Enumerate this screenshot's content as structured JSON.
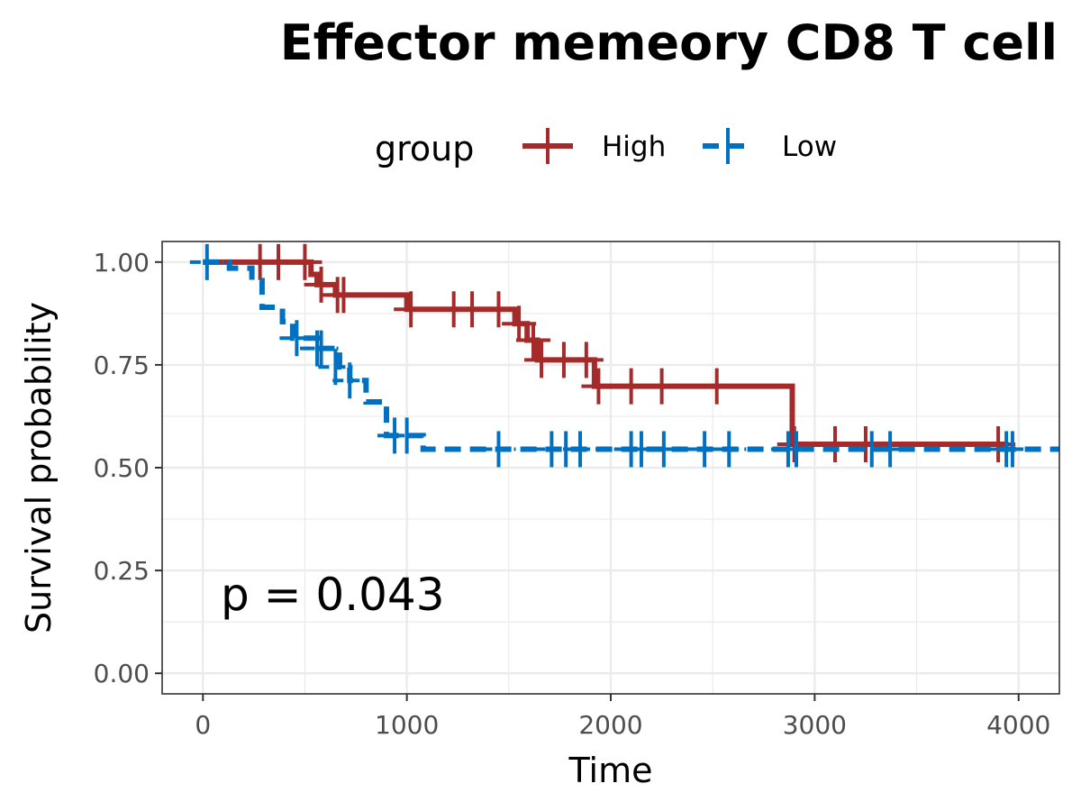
{
  "chart_data": {
    "type": "line",
    "title": "Effector memeory CD8 T cell",
    "xlabel": "Time",
    "ylabel": "Survival probability",
    "xlim": [
      -200,
      4200
    ],
    "ylim": [
      -0.05,
      1.05
    ],
    "xticks": [
      0,
      1000,
      2000,
      3000,
      4000
    ],
    "xtick_labels": [
      "0",
      "1000",
      "2000",
      "3000",
      "4000"
    ],
    "yticks": [
      0,
      0.25,
      0.5,
      0.75,
      1
    ],
    "ytick_labels": [
      "0.00",
      "0.25",
      "0.50",
      "0.75",
      "1.00"
    ],
    "grid": true,
    "legend": {
      "title": "group",
      "position": "top"
    },
    "annotation": "p = 0.043",
    "series": [
      {
        "name": "High",
        "color": "#A52A2A",
        "dash": "solid",
        "steps": [
          [
            0,
            1.0
          ],
          [
            530,
            0.97
          ],
          [
            560,
            0.945
          ],
          [
            650,
            0.92
          ],
          [
            1000,
            0.885
          ],
          [
            1530,
            0.85
          ],
          [
            1590,
            0.81
          ],
          [
            1640,
            0.762
          ],
          [
            1920,
            0.698
          ],
          [
            2890,
            0.557
          ],
          [
            3950,
            0.557
          ]
        ],
        "censor": [
          [
            280,
            1.0
          ],
          [
            370,
            1.0
          ],
          [
            500,
            1.0
          ],
          [
            580,
            0.945
          ],
          [
            660,
            0.92
          ],
          [
            690,
            0.92
          ],
          [
            1020,
            0.885
          ],
          [
            1230,
            0.885
          ],
          [
            1320,
            0.885
          ],
          [
            1450,
            0.885
          ],
          [
            1550,
            0.85
          ],
          [
            1620,
            0.81
          ],
          [
            1660,
            0.762
          ],
          [
            1770,
            0.762
          ],
          [
            1880,
            0.762
          ],
          [
            1940,
            0.698
          ],
          [
            2100,
            0.698
          ],
          [
            2250,
            0.698
          ],
          [
            2520,
            0.698
          ],
          [
            2900,
            0.557
          ],
          [
            3100,
            0.557
          ],
          [
            3250,
            0.557
          ],
          [
            3900,
            0.557
          ]
        ]
      },
      {
        "name": "Low",
        "color": "#0070C0",
        "dash": "dashed",
        "steps": [
          [
            0,
            1.0
          ],
          [
            130,
            0.985
          ],
          [
            240,
            0.955
          ],
          [
            290,
            0.89
          ],
          [
            390,
            0.855
          ],
          [
            440,
            0.815
          ],
          [
            560,
            0.79
          ],
          [
            670,
            0.745
          ],
          [
            720,
            0.712
          ],
          [
            800,
            0.66
          ],
          [
            900,
            0.578
          ],
          [
            1080,
            0.545
          ],
          [
            4200,
            0.545
          ]
        ],
        "censor": [
          [
            20,
            1.0
          ],
          [
            460,
            0.815
          ],
          [
            560,
            0.79
          ],
          [
            580,
            0.79
          ],
          [
            650,
            0.745
          ],
          [
            720,
            0.712
          ],
          [
            940,
            0.578
          ],
          [
            1000,
            0.578
          ],
          [
            1450,
            0.545
          ],
          [
            1710,
            0.545
          ],
          [
            1780,
            0.545
          ],
          [
            1850,
            0.545
          ],
          [
            2100,
            0.545
          ],
          [
            2150,
            0.545
          ],
          [
            2260,
            0.545
          ],
          [
            2460,
            0.545
          ],
          [
            2580,
            0.545
          ],
          [
            2870,
            0.545
          ],
          [
            2910,
            0.545
          ],
          [
            3280,
            0.545
          ],
          [
            3370,
            0.545
          ],
          [
            3940,
            0.545
          ],
          [
            3970,
            0.545
          ]
        ]
      }
    ]
  }
}
